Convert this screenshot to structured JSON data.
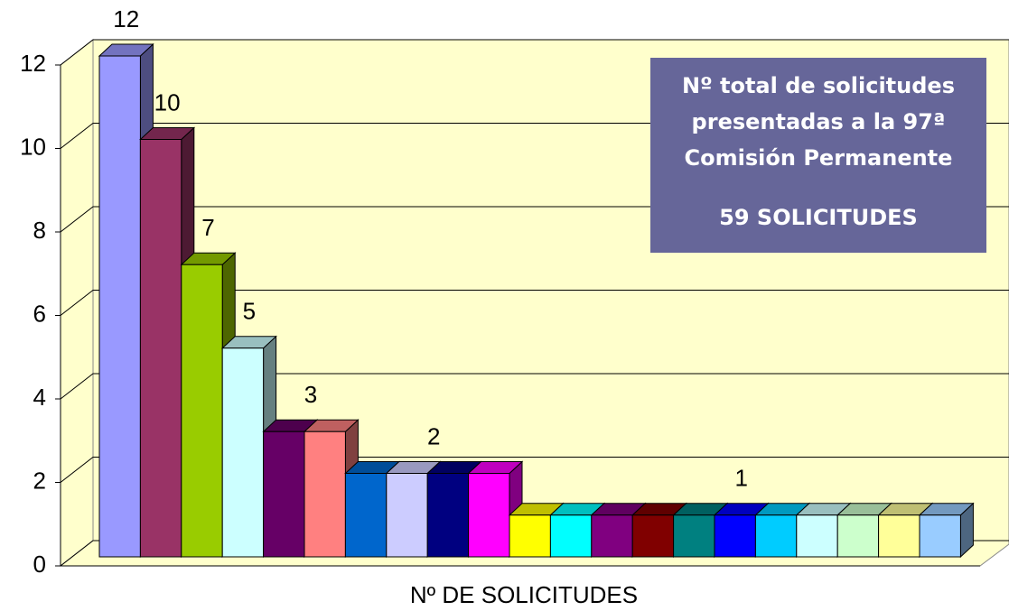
{
  "chart_data": {
    "type": "bar3d",
    "x_label": "Nº DE SOLICITUDES",
    "annotation": [
      "Nº  total de solicitudes",
      "presentadas a la 97ª",
      "Comisión Permanente",
      "59 SOLICITUDES"
    ],
    "values": [
      12,
      10,
      7,
      5,
      3,
      3,
      2,
      2,
      2,
      2,
      1,
      1,
      1,
      1,
      1,
      1,
      1,
      1,
      1,
      1,
      1
    ],
    "colors": [
      "#9999ff",
      "#993366",
      "#99cc00",
      "#ccffff",
      "#660066",
      "#ff8080",
      "#0066cc",
      "#ccccff",
      "#000080",
      "#ff00ff",
      "#ffff00",
      "#00ffff",
      "#800080",
      "#800000",
      "#008080",
      "#0000ff",
      "#00ccff",
      "#ccffff",
      "#ccffcc",
      "#ffff99",
      "#99ccff"
    ],
    "ylim": [
      0,
      12
    ],
    "yticks": [
      0,
      2,
      4,
      6,
      8,
      10,
      12
    ],
    "grid": true
  }
}
